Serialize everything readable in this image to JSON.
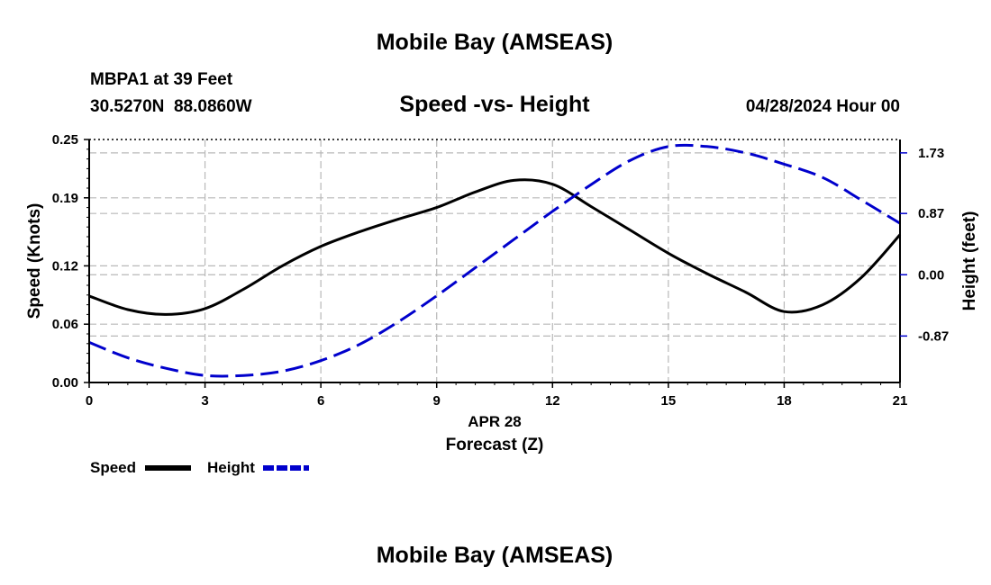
{
  "header": {
    "title": "Mobile Bay (AMSEAS)",
    "station": "MBPA1 at 39 Feet",
    "coords": "30.5270N  88.0860W",
    "subtitle": "Speed -vs- Height",
    "datetime": "04/28/2024 Hour 00"
  },
  "footer": {
    "title": "Mobile Bay (AMSEAS)"
  },
  "chart_data": {
    "type": "line",
    "xlabel": "Forecast (Z)",
    "xsublabel": "APR 28",
    "ylabel": "Speed (Knots)",
    "y2label": "Height (feet)",
    "xlim": [
      0,
      21
    ],
    "ylim": [
      0,
      0.25
    ],
    "y2lim": [
      -1.53,
      1.92
    ],
    "xticks": [
      "0",
      "3",
      "6",
      "9",
      "12",
      "15",
      "18",
      "21"
    ],
    "yticks": [
      "0.00",
      "0.06",
      "0.12",
      "0.19",
      "0.25"
    ],
    "y2ticks": [
      "-0.87",
      "0.00",
      "0.87",
      "1.73"
    ],
    "grid": true,
    "legend_position": "bottom-left",
    "x": [
      0,
      1,
      2,
      3,
      4,
      5,
      6,
      7,
      8,
      9,
      10,
      11,
      12,
      13,
      14,
      15,
      16,
      17,
      18,
      19,
      20,
      21
    ],
    "series": [
      {
        "name": "Speed",
        "axis": "left",
        "color": "#000000",
        "style": "solid",
        "values": [
          0.089,
          0.075,
          0.07,
          0.076,
          0.096,
          0.12,
          0.14,
          0.155,
          0.168,
          0.18,
          0.196,
          0.208,
          0.204,
          0.181,
          0.157,
          0.133,
          0.112,
          0.093,
          0.073,
          0.08,
          0.108,
          0.152
        ]
      },
      {
        "name": "Height",
        "axis": "right",
        "color": "#0000cc",
        "style": "dashed",
        "values": [
          -0.96,
          -1.18,
          -1.33,
          -1.43,
          -1.43,
          -1.37,
          -1.22,
          -0.99,
          -0.67,
          -0.3,
          0.1,
          0.5,
          0.9,
          1.28,
          1.62,
          1.82,
          1.82,
          1.73,
          1.57,
          1.38,
          1.06,
          0.73
        ]
      }
    ]
  }
}
